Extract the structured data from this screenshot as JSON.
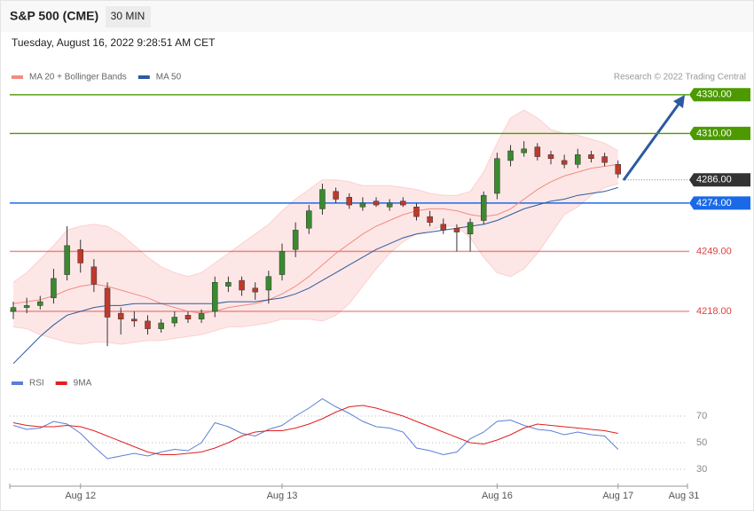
{
  "chart_data": [
    {
      "type": "candlestick",
      "title": "S&P 500 (CME)",
      "interval": "30 MIN",
      "subtitle": "Tuesday, August 16, 2022 9:28:51 AM CET",
      "credit": "Research © 2022 Trading Central",
      "categories": [
        null,
        null,
        null,
        null,
        null,
        "Aug 12",
        null,
        null,
        null,
        null,
        null,
        null,
        null,
        null,
        null,
        null,
        null,
        null,
        null,
        null,
        "Aug 13",
        null,
        null,
        null,
        null,
        null,
        null,
        null,
        null,
        null,
        null,
        null,
        null,
        null,
        null,
        null,
        "Aug 16",
        null,
        null,
        null,
        null,
        null,
        null,
        null,
        null,
        "Aug 17"
      ],
      "axis_end_label": "Aug 31",
      "open": [
        4218,
        4220,
        4221,
        4225,
        4237,
        4250,
        4241,
        4230,
        4217,
        4214,
        4213,
        4209,
        4212,
        4216,
        4214,
        4218,
        4231,
        4234,
        4230,
        4229,
        4237,
        4250,
        4261,
        4271,
        4280,
        4277,
        4272,
        4275,
        4272,
        4275,
        4272,
        4267,
        4263,
        4261,
        4258,
        4265,
        4279,
        4296,
        4300,
        4303,
        4299,
        4296,
        4294,
        4299,
        4298,
        4294
      ],
      "high": [
        4223,
        4225,
        4226,
        4240,
        4262,
        4255,
        4245,
        4233,
        4220,
        4218,
        4216,
        4214,
        4218,
        4218,
        4219,
        4236,
        4236,
        4236,
        4233,
        4239,
        4253,
        4264,
        4273,
        4284,
        4282,
        4279,
        4277,
        4277,
        4276,
        4277,
        4274,
        4270,
        4266,
        4263,
        4266,
        4280,
        4300,
        4304,
        4306,
        4305,
        4301,
        4299,
        4302,
        4301,
        4300,
        4296
      ],
      "low": [
        4214,
        4217,
        4219,
        4222,
        4234,
        4238,
        4228,
        4200,
        4206,
        4210,
        4206,
        4207,
        4210,
        4212,
        4212,
        4215,
        4228,
        4226,
        4224,
        4222,
        4234,
        4246,
        4258,
        4268,
        4274,
        4271,
        4270,
        4272,
        4270,
        4272,
        4265,
        4262,
        4258,
        4249,
        4249,
        4263,
        4276,
        4293,
        4298,
        4296,
        4294,
        4292,
        4292,
        4295,
        4293,
        4287
      ],
      "close": [
        4220,
        4221,
        4223,
        4235,
        4252,
        4243,
        4232,
        4215,
        4214,
        4213,
        4209,
        4212,
        4215,
        4214,
        4217,
        4233,
        4233,
        4229,
        4228,
        4236,
        4249,
        4260,
        4270,
        4281,
        4276,
        4273,
        4274,
        4273,
        4274,
        4273,
        4267,
        4264,
        4260,
        4259,
        4264,
        4278,
        4297,
        4301,
        4302,
        4298,
        4297,
        4294,
        4299,
        4297,
        4295,
        4289
      ],
      "up_color": "#3a8a2e",
      "down_color": "#c0392b",
      "series": [
        {
          "name": "MA 20 + Bollinger Bands",
          "color": "#f28b82",
          "values": [
            4222,
            4223,
            4224,
            4226,
            4229,
            4231,
            4232,
            4231,
            4229,
            4227,
            4225,
            4222,
            4220,
            4218,
            4217,
            4218,
            4220,
            4221,
            4222,
            4224,
            4227,
            4231,
            4236,
            4242,
            4248,
            4253,
            4258,
            4262,
            4265,
            4268,
            4270,
            4271,
            4271,
            4270,
            4268,
            4267,
            4268,
            4271,
            4276,
            4281,
            4285,
            4288,
            4290,
            4292,
            4293,
            4294
          ],
          "upper": [
            4233,
            4238,
            4245,
            4252,
            4260,
            4262,
            4263,
            4262,
            4258,
            4252,
            4246,
            4241,
            4238,
            4236,
            4238,
            4243,
            4248,
            4253,
            4258,
            4263,
            4270,
            4276,
            4281,
            4286,
            4286,
            4285,
            4283,
            4283,
            4283,
            4282,
            4281,
            4279,
            4278,
            4278,
            4280,
            4290,
            4305,
            4318,
            4322,
            4318,
            4312,
            4310,
            4309,
            4307,
            4305,
            4301
          ],
          "lower": [
            4210,
            4209,
            4206,
            4204,
            4202,
            4201,
            4202,
            4202,
            4201,
            4202,
            4203,
            4203,
            4204,
            4205,
            4206,
            4208,
            4210,
            4210,
            4211,
            4212,
            4214,
            4214,
            4214,
            4213,
            4216,
            4222,
            4231,
            4240,
            4248,
            4254,
            4258,
            4260,
            4262,
            4262,
            4256,
            4246,
            4238,
            4236,
            4240,
            4248,
            4258,
            4268,
            4272,
            4278,
            4282,
            4284
          ]
        },
        {
          "name": "MA 50",
          "color": "#2c5aa0",
          "values": [
            4191,
            4198,
            4205,
            4211,
            4216,
            4218,
            4220,
            4221,
            4221,
            4222,
            4222,
            4222,
            4222,
            4222,
            4222,
            4222,
            4223,
            4223,
            4223,
            4224,
            4225,
            4227,
            4230,
            4234,
            4238,
            4242,
            4246,
            4250,
            4253,
            4256,
            4258,
            4259,
            4260,
            4261,
            4262,
            4263,
            4265,
            4268,
            4271,
            4273,
            4275,
            4276,
            4278,
            4279,
            4280,
            4282
          ]
        }
      ],
      "ylim": [
        4190,
        4340
      ],
      "levels": [
        {
          "value": 4330,
          "label": "4330.00",
          "color": "#4c9a00",
          "style": "solid",
          "boxed": true
        },
        {
          "value": 4310,
          "label": "4310.00",
          "color": "#4c9a00",
          "style": "solid",
          "boxed": true
        },
        {
          "value": 4286,
          "label": "4286.00",
          "color": "#333333",
          "style": "dotted",
          "boxed": true
        },
        {
          "value": 4274,
          "label": "4274.00",
          "color": "#1a6ae8",
          "style": "solid",
          "boxed": true
        },
        {
          "value": 4249,
          "label": "4249.00",
          "color": "#e04040",
          "style": "solid",
          "boxed": false
        },
        {
          "value": 4218,
          "label": "4218.00",
          "color": "#e04040",
          "style": "solid",
          "boxed": false
        }
      ]
    },
    {
      "type": "line",
      "series": [
        {
          "name": "RSI",
          "color": "#5b7fd6",
          "values": [
            63,
            60,
            61,
            66,
            64,
            57,
            47,
            38,
            40,
            42,
            40,
            43,
            45,
            44,
            50,
            65,
            62,
            57,
            55,
            60,
            63,
            70,
            76,
            83,
            77,
            72,
            66,
            62,
            61,
            58,
            46,
            44,
            41,
            43,
            53,
            58,
            66,
            67,
            63,
            60,
            59,
            56,
            58,
            56,
            55,
            45
          ]
        },
        {
          "name": "9MA",
          "color": "#e02020",
          "values": [
            65,
            63,
            62,
            62,
            63,
            62,
            59,
            55,
            51,
            47,
            43,
            41,
            41,
            42,
            43,
            46,
            50,
            55,
            58,
            59,
            59,
            61,
            64,
            68,
            73,
            77,
            78,
            76,
            73,
            70,
            66,
            62,
            58,
            54,
            50,
            49,
            52,
            56,
            61,
            64,
            63,
            62,
            61,
            60,
            59,
            57
          ]
        }
      ],
      "ylim": [
        24,
        88
      ],
      "yticks": [
        30,
        50,
        70
      ]
    }
  ]
}
